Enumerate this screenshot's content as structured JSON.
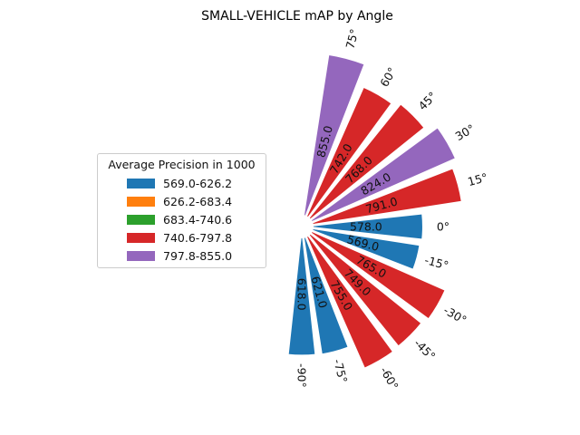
{
  "chart_data": {
    "type": "bar",
    "subtype": "polar",
    "title": "SMALL-VEHICLE mAP by Angle",
    "categories": [
      "-90°",
      "-75°",
      "-60°",
      "-45°",
      "-30°",
      "-15°",
      "0°",
      "15°",
      "30°",
      "45°",
      "60°",
      "75°"
    ],
    "angles_deg": [
      -90,
      -75,
      -60,
      -45,
      -30,
      -15,
      0,
      15,
      30,
      45,
      60,
      75
    ],
    "values": [
      618.0,
      621.0,
      755.0,
      749.0,
      765.0,
      569.0,
      578.0,
      791.0,
      824.0,
      768.0,
      742.0,
      855.0
    ],
    "value_labels": [
      "618.0",
      "621.0",
      "755.0",
      "749.0",
      "765.0",
      "569.0",
      "578.0",
      "791.0",
      "824.0",
      "768.0",
      "742.0",
      "855.0"
    ],
    "legend": {
      "title": "Average Precision in 1000",
      "placement": "left",
      "items": [
        {
          "label": "569.0-626.2",
          "color": "#1f77b4"
        },
        {
          "label": "626.2-683.4",
          "color": "#ff7f0e"
        },
        {
          "label": "683.4-740.6",
          "color": "#2ca02c"
        },
        {
          "label": "740.6-797.8",
          "color": "#d62728"
        },
        {
          "label": "797.8-855.0",
          "color": "#9467bd"
        }
      ]
    }
  }
}
